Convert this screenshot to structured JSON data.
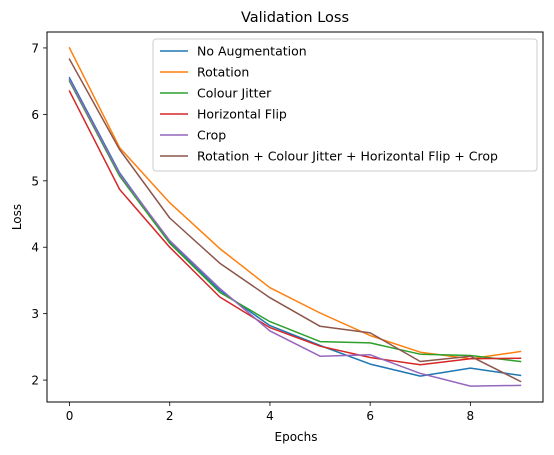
{
  "chart_data": {
    "type": "line",
    "title": "Validation Loss",
    "xlabel": "Epochs",
    "ylabel": "Loss",
    "xlim": [
      -0.45,
      9.45
    ],
    "ylim": [
      1.67,
      7.24
    ],
    "xticks": [
      0,
      2,
      4,
      6,
      8
    ],
    "yticks": [
      2,
      3,
      4,
      5,
      6,
      7
    ],
    "grid": false,
    "legend_position": "upper right",
    "x": [
      0,
      1,
      2,
      3,
      4,
      5,
      6,
      7,
      8,
      9
    ],
    "series": [
      {
        "name": "No Augmentation",
        "color": "#1f77b4",
        "values": [
          6.55,
          5.12,
          4.08,
          3.35,
          2.82,
          2.52,
          2.24,
          2.06,
          2.18,
          2.07
        ]
      },
      {
        "name": "Rotation",
        "color": "#ff7f0e",
        "values": [
          7.0,
          5.5,
          4.67,
          3.98,
          3.39,
          3.01,
          2.67,
          2.42,
          2.32,
          2.43
        ]
      },
      {
        "name": "Colour Jitter",
        "color": "#2ca02c",
        "values": [
          6.5,
          5.07,
          4.06,
          3.32,
          2.88,
          2.58,
          2.56,
          2.39,
          2.37,
          2.28
        ]
      },
      {
        "name": "Horizontal Flip",
        "color": "#d62728",
        "values": [
          6.35,
          4.87,
          4.0,
          3.25,
          2.79,
          2.51,
          2.34,
          2.23,
          2.32,
          2.33
        ]
      },
      {
        "name": "Crop",
        "color": "#9467bd",
        "values": [
          6.52,
          5.1,
          4.1,
          3.38,
          2.74,
          2.36,
          2.38,
          2.1,
          1.91,
          1.92
        ]
      },
      {
        "name": "Rotation + Colour Jitter + Horizontal Flip + Crop",
        "color": "#8c564b",
        "values": [
          6.83,
          5.47,
          4.44,
          3.76,
          3.24,
          2.81,
          2.71,
          2.28,
          2.36,
          1.98
        ]
      }
    ]
  }
}
